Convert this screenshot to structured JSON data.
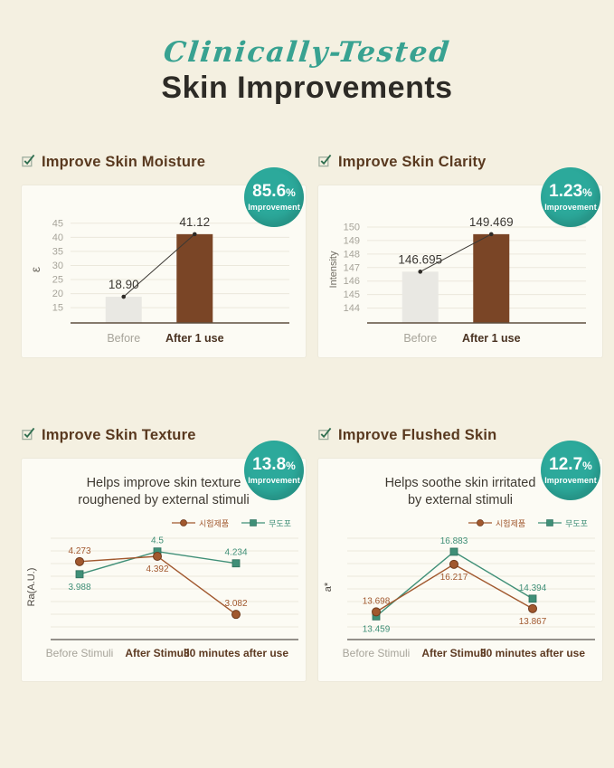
{
  "header": {
    "script_title": "Clinically-Tested",
    "main_title": "Skin Improvements"
  },
  "badge_label": "Improvement",
  "panels": [
    {
      "heading": "Improve Skin Moisture",
      "badge_value": "85.6",
      "badge_unit": "%"
    },
    {
      "heading": "Improve Skin Clarity",
      "badge_value": "1.23",
      "badge_unit": "%"
    },
    {
      "heading": "Improve Skin Texture",
      "badge_value": "13.8",
      "badge_unit": "%"
    },
    {
      "heading": "Improve Flushed Skin",
      "badge_value": "12.7",
      "badge_unit": "%"
    }
  ],
  "colors": {
    "background": "#f4f0e1",
    "card": "#fcfbf4",
    "accent_teal": "#2ca99b",
    "heading_brown": "#59391f",
    "bar_brown": "#7a4526",
    "bar_gray": "#e9e8e3",
    "series_brown": "#a1582e",
    "series_teal": "#3f8f77",
    "tick_gray": "#a7a49a",
    "grid": "#ebe8dc",
    "value_text": "#3b3833"
  },
  "chart_data": [
    {
      "type": "bar",
      "ylabel": "ε",
      "yticks": [
        45,
        40,
        35,
        30,
        25,
        20,
        15
      ],
      "ymin": 9.6,
      "ymax": 47.5,
      "categories": [
        "Before",
        "After 1 use"
      ],
      "category_colors": [
        "#a7a49a",
        "#4a3322"
      ],
      "values": [
        18.9,
        41.12
      ],
      "value_labels": [
        "18.90",
        "41.12"
      ],
      "bar_colors": [
        "#e9e8e3",
        "#7a4526"
      ],
      "grid": true,
      "connector": true
    },
    {
      "type": "bar",
      "ylabel": "Intensity",
      "yticks": [
        150,
        149,
        148,
        147,
        146,
        145,
        144
      ],
      "ymin": 142.9,
      "ymax": 150.8,
      "categories": [
        "Before",
        "After 1 use"
      ],
      "category_colors": [
        "#a7a49a",
        "#4a3322"
      ],
      "values": [
        146.695,
        149.469
      ],
      "value_labels": [
        "146.695",
        "149.469"
      ],
      "bar_colors": [
        "#e9e8e3",
        "#7a4526"
      ],
      "grid": true,
      "connector": true
    },
    {
      "type": "line",
      "title_lines": [
        "Helps improve skin texture",
        "roughened by external stimuli"
      ],
      "ylabel": "Ra(A.U.)",
      "ymin": 2.8,
      "ymax": 4.8,
      "categories": [
        "Before Stimuli",
        "After Stimuli",
        "30 minutes after use"
      ],
      "category_colors": [
        "#a7a49a",
        "#5d3a22",
        "#5d3a22"
      ],
      "grid": true,
      "legend_position": "top-right",
      "series": [
        {
          "name": "시험제품",
          "marker": "circle",
          "color": "#a1582e",
          "stroke": "#6e3a1c",
          "values": [
            4.273,
            4.392,
            3.082
          ],
          "labels": [
            "4.273",
            "4.392",
            "3.082"
          ],
          "label_pos": [
            "above",
            "below",
            "above"
          ]
        },
        {
          "name": "무도포",
          "marker": "square",
          "color": "#3f8f77",
          "stroke": "#2e6f5c",
          "values": [
            3.988,
            4.5,
            4.234
          ],
          "labels": [
            "3.988",
            "4.5",
            "4.234"
          ],
          "label_pos": [
            "below",
            "above",
            "above"
          ]
        }
      ]
    },
    {
      "type": "line",
      "title_lines": [
        "Helps soothe skin irritated",
        "by external stimuli"
      ],
      "ylabel": "a*",
      "ymin": 12.9,
      "ymax": 17.6,
      "categories": [
        "Before Stimuli",
        "After Stimuli",
        "30 minutes after use"
      ],
      "category_colors": [
        "#a7a49a",
        "#5d3a22",
        "#5d3a22"
      ],
      "grid": true,
      "legend_position": "top-right",
      "series": [
        {
          "name": "시험제품",
          "marker": "circle",
          "color": "#a1582e",
          "stroke": "#6e3a1c",
          "values": [
            13.698,
            16.217,
            13.867
          ],
          "labels": [
            "13.698",
            "16.217",
            "13.867"
          ],
          "label_pos": [
            "above",
            "below",
            "below"
          ]
        },
        {
          "name": "무도포",
          "marker": "square",
          "color": "#3f8f77",
          "stroke": "#2e6f5c",
          "values": [
            13.459,
            16.883,
            14.394
          ],
          "labels": [
            "13.459",
            "16.883",
            "14.394"
          ],
          "label_pos": [
            "below",
            "above",
            "above"
          ]
        }
      ]
    }
  ]
}
